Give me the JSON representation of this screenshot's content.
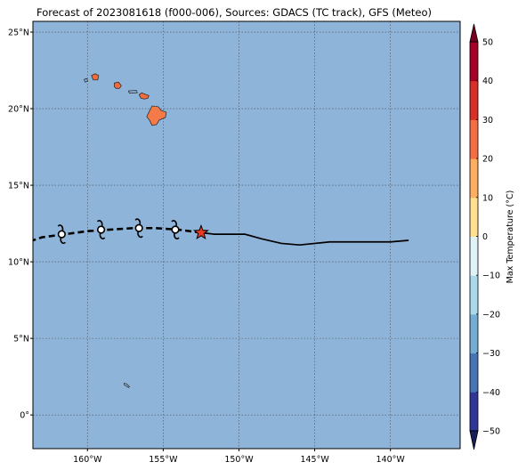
{
  "chart_data": {
    "type": "map",
    "title": "Forecast of 2023081618 (f000-006), Sources: GDACS (TC track), GFS (Meteo)",
    "xlim": [
      -163.6,
      -135.4
    ],
    "ylim": [
      -2.2,
      25.7
    ],
    "xticks": [
      {
        "value": -160,
        "label": "160°W"
      },
      {
        "value": -155,
        "label": "155°W"
      },
      {
        "value": -150,
        "label": "150°W"
      },
      {
        "value": -145,
        "label": "145°W"
      },
      {
        "value": -140,
        "label": "140°W"
      }
    ],
    "yticks": [
      {
        "value": 0,
        "label": "0°"
      },
      {
        "value": 5,
        "label": "5°N"
      },
      {
        "value": 10,
        "label": "10°N"
      },
      {
        "value": 15,
        "label": "15°N"
      },
      {
        "value": 20,
        "label": "20°N"
      },
      {
        "value": 25,
        "label": "25°N"
      }
    ],
    "grid": true,
    "ocean_color": "#8fb4d9",
    "observed_track": [
      [
        -138.8,
        11.4
      ],
      [
        -140.0,
        11.3
      ],
      [
        -142.0,
        11.3
      ],
      [
        -144.0,
        11.3
      ],
      [
        -146.0,
        11.1
      ],
      [
        -147.2,
        11.2
      ],
      [
        -148.5,
        11.5
      ],
      [
        -149.6,
        11.8
      ],
      [
        -150.6,
        11.8
      ],
      [
        -151.6,
        11.8
      ],
      [
        -152.5,
        11.9
      ]
    ],
    "forecast_track": [
      [
        -152.5,
        11.9
      ],
      [
        -154.0,
        12.1
      ],
      [
        -155.5,
        12.2
      ],
      [
        -157.0,
        12.2
      ],
      [
        -158.5,
        12.1
      ],
      [
        -160.0,
        12.0
      ],
      [
        -161.5,
        11.8
      ],
      [
        -163.0,
        11.6
      ],
      [
        -163.6,
        11.4
      ]
    ],
    "current_position": {
      "lon": -152.5,
      "lat": 11.9,
      "marker": "star",
      "color": "#e83a24"
    },
    "forecast_symbols": [
      {
        "lon": -154.2,
        "lat": 12.1
      },
      {
        "lon": -156.6,
        "lat": 12.2
      },
      {
        "lon": -159.1,
        "lat": 12.1
      },
      {
        "lon": -161.7,
        "lat": 11.8
      }
    ],
    "islands": [
      {
        "name": "Hawaii",
        "lon": -155.5,
        "lat": 19.6,
        "color": "#f47a48"
      },
      {
        "name": "Maui",
        "lon": -156.3,
        "lat": 20.8,
        "color": "#ef6c3e"
      },
      {
        "name": "Molokai",
        "lon": -157.0,
        "lat": 21.1,
        "color": "#8fb4d9"
      },
      {
        "name": "Oahu",
        "lon": -158.0,
        "lat": 21.5,
        "color": "#ef6c3e"
      },
      {
        "name": "Kauai",
        "lon": -159.5,
        "lat": 22.05,
        "color": "#ef6c3e"
      },
      {
        "name": "Niihau",
        "lon": -160.1,
        "lat": 21.85,
        "color": "#8fb4d9"
      },
      {
        "name": "Atoll",
        "lon": -157.4,
        "lat": 1.9,
        "color": "#8fb4d9"
      }
    ],
    "colorbar": {
      "label": "Max Temperature (°C)",
      "min": -50,
      "max": 50,
      "step": 10,
      "ticks": [
        50,
        40,
        30,
        20,
        10,
        0,
        -10,
        -20,
        -30,
        -40,
        -50
      ],
      "colors_low_to_high": [
        "#313695",
        "#4575b4",
        "#74add1",
        "#abd9e9",
        "#e0f3f8",
        "#fee090",
        "#fdae61",
        "#f46d43",
        "#d73027",
        "#a50026"
      ],
      "under_color": "#1a1e5a",
      "over_color": "#7a0020"
    }
  }
}
